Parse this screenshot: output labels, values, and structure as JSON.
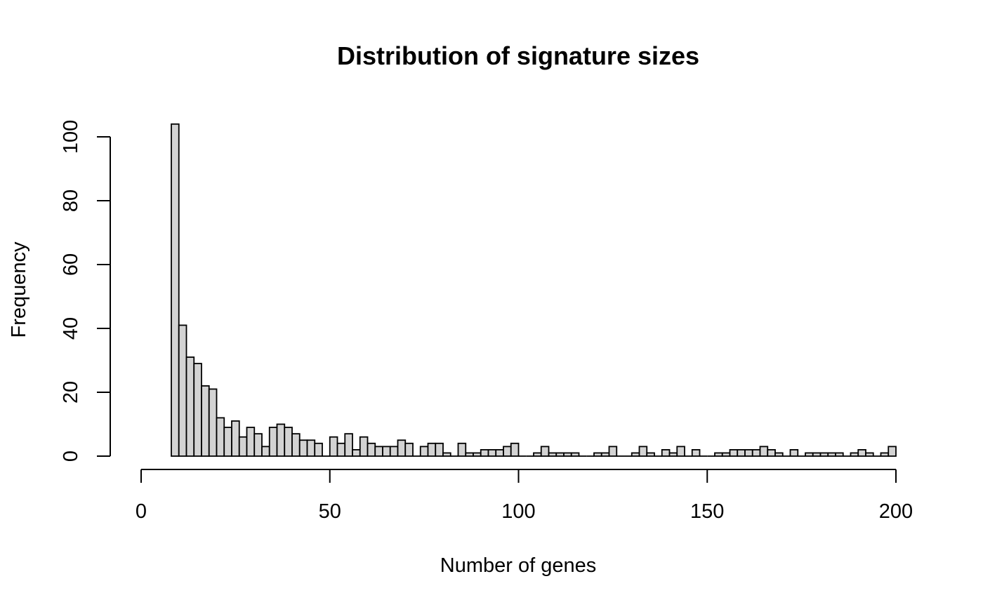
{
  "chart_data": {
    "type": "bar",
    "title": "Distribution of signature sizes",
    "xlabel": "Number of genes",
    "ylabel": "Frequency",
    "xlim": [
      0,
      200
    ],
    "ylim": [
      0,
      100
    ],
    "x_ticks": [
      0,
      50,
      100,
      150,
      200
    ],
    "y_ticks": [
      0,
      20,
      40,
      60,
      80,
      100
    ],
    "bin_width": 2,
    "bin_starts": [
      8,
      10,
      12,
      14,
      16,
      18,
      20,
      22,
      24,
      26,
      28,
      30,
      32,
      34,
      36,
      38,
      40,
      42,
      44,
      46,
      48,
      50,
      52,
      54,
      56,
      58,
      60,
      62,
      64,
      66,
      68,
      70,
      72,
      74,
      76,
      78,
      80,
      82,
      84,
      86,
      88,
      90,
      92,
      94,
      96,
      98,
      100,
      102,
      104,
      106,
      108,
      110,
      112,
      114,
      116,
      118,
      120,
      122,
      124,
      126,
      128,
      130,
      132,
      134,
      136,
      138,
      140,
      142,
      144,
      146,
      148,
      150,
      152,
      154,
      156,
      158,
      160,
      162,
      164,
      166,
      168,
      170,
      172,
      174,
      176,
      178,
      180,
      182,
      184,
      186,
      188,
      190,
      192,
      194,
      196,
      198
    ],
    "values": [
      104,
      41,
      31,
      29,
      22,
      21,
      12,
      9,
      11,
      6,
      9,
      7,
      3,
      9,
      10,
      9,
      7,
      5,
      5,
      4,
      0,
      6,
      4,
      7,
      2,
      6,
      4,
      3,
      3,
      3,
      5,
      4,
      0,
      3,
      4,
      4,
      1,
      0,
      4,
      1,
      1,
      2,
      2,
      2,
      3,
      4,
      0,
      0,
      1,
      3,
      1,
      1,
      1,
      1,
      0,
      0,
      1,
      1,
      3,
      0,
      0,
      1,
      3,
      1,
      0,
      2,
      1,
      3,
      0,
      2,
      0,
      0,
      1,
      1,
      2,
      2,
      2,
      2,
      3,
      2,
      1,
      0,
      2,
      0,
      1,
      1,
      1,
      1,
      1,
      0,
      1,
      2,
      1,
      0,
      1,
      3
    ],
    "grid": false,
    "legend": "none"
  }
}
